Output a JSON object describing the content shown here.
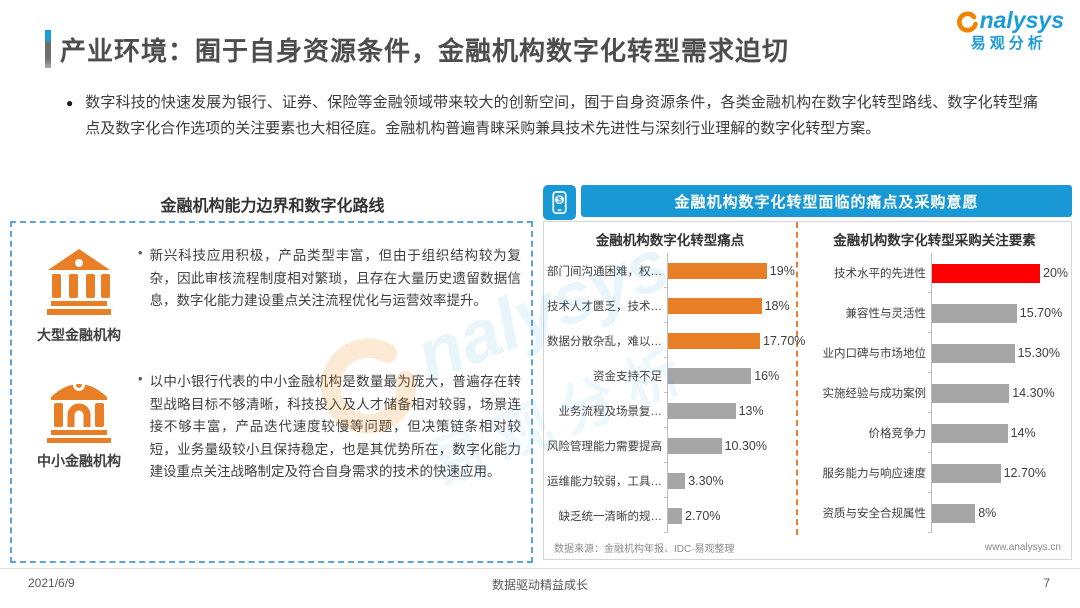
{
  "header": {
    "title": "产业环境：囿于自身资源条件，金融机构数字化转型需求迫切",
    "logo": {
      "brand": "analysys",
      "sub": "易观分析"
    }
  },
  "intro": {
    "bullet": "●",
    "text": "数字科技的快速发展为银行、证券、保险等金融领域带来较大的创新空间，囿于自身资源条件，各类金融机构在数字化转型路线、数字化转型痛点及数字化合作选项的关注要素也大相径庭。金融机构普遍青睐采购兼具技术先进性与深刻行业理解的数字化转型方案。"
  },
  "left_panel": {
    "title": "金融机构能力边界和数字化路线",
    "items": [
      {
        "icon": "large-bank-icon",
        "label": "大型金融机构",
        "text": "新兴科技应用积极，产品类型丰富，但由于组织结构较为复杂，因此审核流程制度相对繁琐，且存在大量历史遗留数据信息，数字化能力建设重点关注流程优化与运营效率提升。"
      },
      {
        "icon": "small-bank-icon",
        "label": "中小金融机构",
        "text": "以中小银行代表的中小金融机构是数量最为庞大，普遍存在转型战略目标不够清晰，科技投入及人才储备相对较弱，场景连接不够丰富，产品迭代速度较慢等问题，但决策链条相对较短，业务量级较小且保持稳定，也是其优势所在，数字化能力建设重点关注战略制定及符合自身需求的技术的快速应用。"
      }
    ]
  },
  "right_panel": {
    "header": "金融机构数字化转型面临的痛点及采购意愿",
    "header_icon": "mobile-payment-icon",
    "source": "数据来源：金融机构年报、IDC·易观整理",
    "website": "www.analysys.cn"
  },
  "chart_data": [
    {
      "type": "bar",
      "orientation": "horizontal",
      "title": "金融机构数字化转型痛点",
      "categories": [
        "部门间沟通困难，权…",
        "技术人才匮乏，技术…",
        "数据分散杂乱，难以…",
        "资金支持不足",
        "业务流程及场景复…",
        "风险管理能力需要提高",
        "运维能力较弱，工具…",
        "缺乏统一清晰的规…"
      ],
      "values": [
        19,
        18,
        17.7,
        16,
        13,
        10.3,
        3.3,
        2.7
      ],
      "value_labels": [
        "19%",
        "18%",
        "17.70%",
        "16%",
        "13%",
        "10.30%",
        "3.30%",
        "2.70%"
      ],
      "bar_colors": [
        "#E87E26",
        "#E87E26",
        "#E87E26",
        "#A6A6A6",
        "#A6A6A6",
        "#A6A6A6",
        "#A6A6A6",
        "#A6A6A6"
      ],
      "xlim": [
        0,
        20
      ],
      "grid": false,
      "legend": false
    },
    {
      "type": "bar",
      "orientation": "horizontal",
      "title": "金融机构数字化转型采购关注要素",
      "categories": [
        "技术水平的先进性",
        "兼容性与灵活性",
        "业内口碑与市场地位",
        "实施经验与成功案例",
        "价格竞争力",
        "服务能力与响应速度",
        "资质与安全合规属性"
      ],
      "values": [
        20,
        15.7,
        15.3,
        14.3,
        14,
        12.7,
        8
      ],
      "value_labels": [
        "20%",
        "15.70%",
        "15.30%",
        "14.30%",
        "14%",
        "12.70%",
        "8%"
      ],
      "bar_colors": [
        "#FE0000",
        "#A6A6A6",
        "#A6A6A6",
        "#A6A6A6",
        "#A6A6A6",
        "#A6A6A6",
        "#A6A6A6"
      ],
      "xlim": [
        0,
        20
      ],
      "grid": false,
      "legend": false
    }
  ],
  "footer": {
    "date": "2021/6/9",
    "center": "数据驱动精益成长",
    "page": "7"
  },
  "colors": {
    "brand_blue": "#1B9CD8",
    "header_blue": "#1899D6",
    "orange": "#E87E26",
    "red": "#FE0000",
    "gray_bar": "#A6A6A6",
    "dashed_border_blue": "#5FA3DA"
  }
}
